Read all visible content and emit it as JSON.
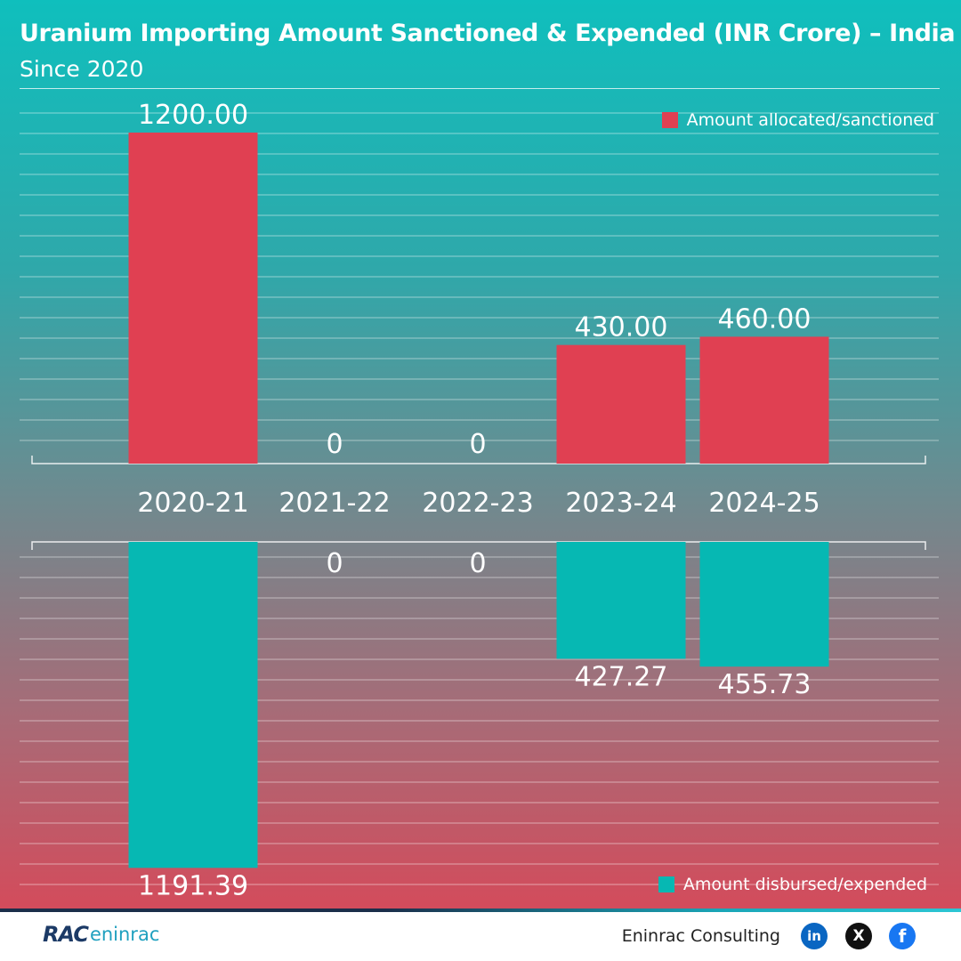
{
  "title": "Uranium Importing Amount Sanctioned & Expended (INR Crore) – India",
  "subtitle": "Since 2020",
  "colors": {
    "sanctioned": "#e04052",
    "expended": "#06b8b3"
  },
  "chart_data": {
    "type": "bar",
    "categories": [
      "2020-21",
      "2021-22",
      "2022-23",
      "2023-24",
      "2024-25"
    ],
    "series": [
      {
        "name": "Amount allocated/sanctioned",
        "values": [
          1200.0,
          0,
          0,
          430.0,
          460.0
        ],
        "labels": [
          "1200.00",
          "0",
          "0",
          "430.00",
          "460.00"
        ],
        "direction": "up"
      },
      {
        "name": "Amount disbursed/expended",
        "values": [
          1191.39,
          0,
          0,
          427.27,
          455.73
        ],
        "labels": [
          "1191.39",
          "0",
          "0",
          "427.27",
          "455.73"
        ],
        "direction": "down"
      }
    ],
    "ylim": [
      0,
      1200
    ],
    "grid": true,
    "legend": {
      "sanctioned": "top-right",
      "expended": "bottom-right"
    }
  },
  "legend": {
    "sanctioned_label": "Amount allocated/sanctioned",
    "expended_label": "Amount disbursed/expended"
  },
  "footer": {
    "logo_mark": "RAC",
    "logo_word": "eninrac",
    "brand": "Eninrac Consulting",
    "social": {
      "linkedin": "in",
      "x": "X",
      "facebook": "f"
    },
    "icons": [
      "linkedin-icon",
      "x-icon",
      "facebook-icon"
    ]
  }
}
